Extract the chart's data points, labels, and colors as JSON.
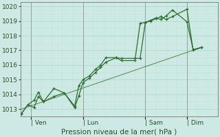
{
  "bg_color": "#cce9e4",
  "grid_major_color": "#b8d8d3",
  "grid_minor_color": "#cce0dc",
  "line_color": "#2d6e2d",
  "vline_color": "#888888",
  "title": "Pression niveau de la mer( hPa )",
  "ylim": [
    1012.5,
    1020.3
  ],
  "yticks": [
    1013,
    1014,
    1015,
    1016,
    1017,
    1018,
    1019,
    1020
  ],
  "day_labels": [
    "| Ven",
    "| Lun",
    "| Sam",
    "| Dim"
  ],
  "day_positions": [
    0.5,
    3.0,
    6.0,
    8.0
  ],
  "xlim": [
    0,
    9.5
  ],
  "series1_x": [
    0.05,
    0.35,
    0.65,
    0.85,
    1.1,
    1.6,
    2.1,
    2.6,
    2.8,
    3.0,
    3.3,
    3.6,
    3.85,
    4.1,
    4.6,
    4.85,
    5.5,
    5.75,
    6.0,
    6.25,
    6.5,
    6.75,
    7.0,
    7.3,
    8.0,
    8.3,
    8.7
  ],
  "series1_y": [
    1012.7,
    1013.3,
    1013.1,
    1013.85,
    1013.5,
    1013.85,
    1014.1,
    1013.1,
    1013.9,
    1014.8,
    1015.1,
    1015.5,
    1015.85,
    1016.2,
    1016.5,
    1016.45,
    1016.45,
    1016.45,
    1018.9,
    1019.05,
    1019.2,
    1019.1,
    1019.35,
    1019.75,
    1018.95,
    1017.05,
    1017.2
  ],
  "series2_x": [
    0.05,
    0.35,
    0.65,
    0.85,
    1.1,
    1.6,
    2.1,
    2.6,
    2.8,
    3.0,
    3.3,
    3.6,
    3.85,
    4.1,
    4.6,
    4.85,
    5.5,
    5.75,
    6.0,
    6.25,
    6.5,
    6.75,
    7.0,
    7.3,
    8.0,
    8.3,
    8.7
  ],
  "series2_y": [
    1012.7,
    1013.3,
    1013.6,
    1014.15,
    1013.5,
    1014.4,
    1014.1,
    1013.2,
    1014.6,
    1015.0,
    1015.25,
    1015.7,
    1016.0,
    1016.5,
    1016.5,
    1016.3,
    1016.3,
    1018.85,
    1018.9,
    1019.0,
    1019.15,
    1019.3,
    1019.1,
    1019.3,
    1019.8,
    1017.0,
    1017.2
  ],
  "trend_x": [
    0.05,
    8.7
  ],
  "trend_y": [
    1013.0,
    1017.2
  ],
  "tick_fontsize": 6.5,
  "label_fontsize": 7.5
}
